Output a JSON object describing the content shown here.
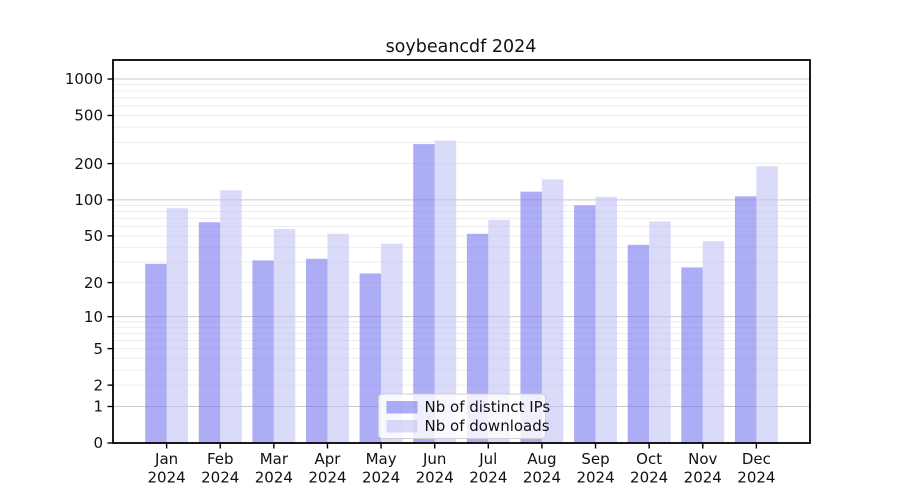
{
  "title": "soybeancdf 2024",
  "chart_data": {
    "type": "bar",
    "title": "soybeancdf 2024",
    "categories": [
      "Jan",
      "Feb",
      "Mar",
      "Apr",
      "May",
      "Jun",
      "Jul",
      "Aug",
      "Sep",
      "Oct",
      "Nov",
      "Dec"
    ],
    "category_year_line": "2024",
    "series": [
      {
        "name": "Nb of distinct IPs",
        "color": "#7a7af0",
        "values": [
          29,
          65,
          31,
          32,
          24,
          290,
          52,
          117,
          90,
          42,
          27,
          107
        ]
      },
      {
        "name": "Nb of downloads",
        "color": "#c3c3f6",
        "values": [
          85,
          120,
          57,
          52,
          43,
          310,
          68,
          148,
          106,
          66,
          45,
          190
        ]
      }
    ],
    "yscale": "log1p",
    "yticks": [
      0,
      1,
      2,
      5,
      10,
      20,
      50,
      100,
      200,
      500,
      1000
    ],
    "major_gridlines": [
      1,
      10,
      100,
      1000
    ],
    "ylim": [
      0,
      1435
    ],
    "xlabel": "",
    "ylabel": "",
    "grid": "on",
    "legend_position": "lower center",
    "colors": {
      "bar_opacity": 0.62,
      "major_grid": "#c9c9c9",
      "minor_grid": "#ededed",
      "spine": "#000000",
      "legend_border": "#d0d0d0",
      "legend_background": "#ffffff",
      "text": "#111111"
    }
  }
}
